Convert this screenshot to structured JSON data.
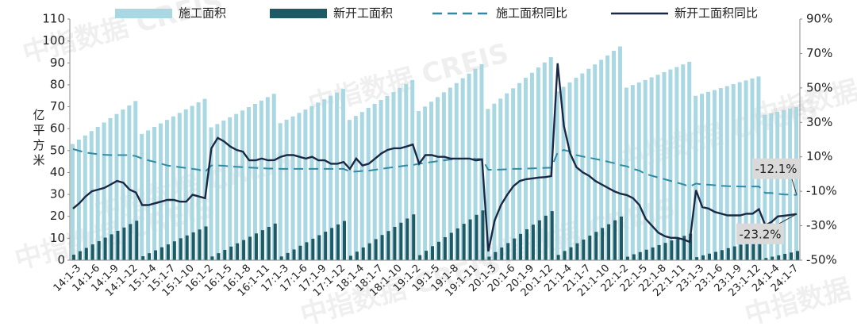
{
  "chart_data": {
    "type": "bar-line",
    "watermark": "中指数据 CREIS",
    "ylabel": "亿平方米",
    "categories": [
      null,
      "14:1-3",
      null,
      null,
      "14:1-6",
      null,
      null,
      "14:1-9",
      null,
      null,
      "14:1-12",
      null,
      null,
      "15:1-4",
      null,
      null,
      "15:1-7",
      null,
      null,
      "15:1-10",
      null,
      null,
      "16:1-2",
      null,
      null,
      "16:1-5",
      null,
      null,
      "16:1-8",
      null,
      null,
      "16:1-11",
      null,
      null,
      "17:1-3",
      null,
      null,
      "17:1-6",
      null,
      null,
      "17:1-9",
      null,
      null,
      "17:1-12",
      null,
      null,
      "18:1-4",
      null,
      null,
      "18:1-7",
      null,
      null,
      "18:1-10",
      null,
      null,
      "19:1-2",
      null,
      null,
      "19:1-5",
      null,
      null,
      "19:1-8",
      null,
      null,
      "19:1-11",
      null,
      null,
      "20:1-3",
      null,
      null,
      "20:1-6",
      null,
      null,
      "20:1-9",
      null,
      null,
      "20:1-12",
      null,
      null,
      "21:1-4",
      null,
      null,
      "21:1-7",
      null,
      null,
      "21:1-10",
      null,
      null,
      "22:1-2",
      null,
      null,
      "22:1-5",
      null,
      null,
      "22:1-8",
      null,
      null,
      "22:1-11",
      null,
      null,
      "23:1-3",
      null,
      null,
      "23:1-6",
      null,
      null,
      "23:1-9",
      null,
      null,
      "23:1-12",
      null,
      null,
      "24:1-4",
      null,
      null,
      "24:1-7"
    ],
    "series": [
      {
        "name": "施工面积",
        "kind": "bar",
        "color": "#a9d8e3",
        "values": [
          53.0,
          55.0,
          56.9,
          58.9,
          60.8,
          62.8,
          64.8,
          66.7,
          68.7,
          70.6,
          72.6,
          57.6,
          59.2,
          60.8,
          62.4,
          64.0,
          65.6,
          67.2,
          68.8,
          70.4,
          72.0,
          73.6,
          60.6,
          62.1,
          63.7,
          65.2,
          66.7,
          68.3,
          69.8,
          71.3,
          72.8,
          74.4,
          75.9,
          62.5,
          64.1,
          65.6,
          67.2,
          68.7,
          70.3,
          71.9,
          73.4,
          75.0,
          76.5,
          78.1,
          64.0,
          65.8,
          67.6,
          69.5,
          71.3,
          73.1,
          74.9,
          76.7,
          78.6,
          80.4,
          82.2,
          68.0,
          70.1,
          72.3,
          74.4,
          76.6,
          78.7,
          80.8,
          83.0,
          85.1,
          87.3,
          89.4,
          69.0,
          71.4,
          73.7,
          76.1,
          78.4,
          80.8,
          83.2,
          85.5,
          87.9,
          90.2,
          92.6,
          77.0,
          79.1,
          81.1,
          83.2,
          85.2,
          87.3,
          89.3,
          91.4,
          93.4,
          95.5,
          97.5,
          78.7,
          79.9,
          81.1,
          82.2,
          83.4,
          84.6,
          85.8,
          87.0,
          88.1,
          89.3,
          90.5,
          75.0,
          75.9,
          76.8,
          77.6,
          78.5,
          79.4,
          80.3,
          81.2,
          82.0,
          82.9,
          83.8,
          66.3,
          67.0,
          67.7,
          68.5,
          69.2,
          69.9
        ]
      },
      {
        "name": "新开工面积",
        "kind": "bar",
        "color": "#1e5a66",
        "values": [
          2.5,
          4.1,
          5.6,
          7.2,
          8.7,
          10.3,
          11.8,
          13.4,
          14.9,
          16.5,
          18.0,
          1.8,
          3.2,
          4.5,
          5.9,
          7.2,
          8.6,
          10.0,
          11.3,
          12.7,
          14.0,
          15.4,
          1.7,
          3.2,
          4.7,
          6.2,
          7.7,
          9.2,
          10.7,
          12.2,
          13.7,
          15.2,
          16.7,
          1.7,
          3.3,
          4.9,
          6.6,
          8.2,
          9.8,
          11.4,
          13.0,
          14.7,
          16.3,
          17.9,
          2.0,
          3.9,
          5.8,
          7.7,
          9.6,
          11.5,
          13.3,
          15.2,
          17.1,
          19.0,
          20.9,
          2.3,
          4.3,
          6.4,
          8.4,
          10.5,
          12.5,
          14.5,
          16.6,
          18.6,
          20.7,
          22.7,
          1.6,
          3.7,
          5.8,
          7.8,
          9.9,
          12.0,
          14.1,
          16.2,
          18.2,
          20.3,
          22.4,
          2.4,
          4.2,
          5.9,
          7.7,
          9.4,
          11.2,
          12.9,
          14.7,
          16.4,
          18.2,
          19.9,
          1.6,
          2.7,
          3.7,
          4.8,
          5.8,
          6.9,
          7.9,
          9.0,
          10.0,
          11.1,
          12.1,
          1.4,
          2.2,
          3.0,
          3.8,
          4.6,
          5.5,
          6.3,
          7.1,
          7.9,
          8.7,
          9.5,
          1.0,
          1.6,
          2.2,
          2.9,
          3.5,
          4.2
        ]
      },
      {
        "name": "施工面积同比",
        "kind": "line",
        "dash": true,
        "axis": "y2",
        "color": "#2f8ba5",
        "values": [
          14.5,
          13.5,
          12.5,
          12,
          11.5,
          11.2,
          11.0,
          11.0,
          11.0,
          11.0,
          10.4,
          9,
          8,
          7,
          6,
          5,
          4.5,
          4,
          3.5,
          3,
          2.5,
          1.3,
          5,
          5,
          4.8,
          4.5,
          4.2,
          4,
          3.8,
          3.6,
          3.4,
          3.2,
          3.2,
          3,
          3,
          3,
          3,
          3,
          3,
          3,
          3,
          3,
          3,
          3,
          1.5,
          1.5,
          1.8,
          2,
          2.5,
          3,
          3.5,
          4,
          4.5,
          5,
          5.2,
          6,
          6.5,
          7,
          7.5,
          8,
          8.5,
          8.8,
          9,
          9,
          8.8,
          8.7,
          2.5,
          2.5,
          2.6,
          2.8,
          3,
          3,
          3.2,
          3.3,
          3.4,
          3.6,
          3.7,
          12.5,
          14,
          13,
          11,
          10.2,
          9.5,
          8.8,
          8,
          7.2,
          6.3,
          5.2,
          4.5,
          3,
          2,
          0,
          -1,
          -2,
          -3,
          -4,
          -5,
          -6,
          -7.2,
          -5.5,
          -6,
          -6.2,
          -6.5,
          -6.8,
          -7,
          -7.1,
          -7.2,
          -7.3,
          -7.2,
          -7.2,
          -11,
          -11,
          -11.5,
          -11.8,
          -12,
          -12.1
        ],
        "value_labels": [
          null,
          null,
          null,
          null,
          null,
          null,
          null,
          null,
          null,
          null,
          null,
          null,
          null,
          null,
          null,
          null,
          null,
          null,
          null,
          null,
          null,
          null,
          null,
          null,
          null,
          null,
          null,
          null,
          null,
          null,
          null,
          null,
          null,
          null,
          null,
          null,
          null,
          null,
          null,
          null,
          null,
          null,
          null,
          null,
          null,
          null,
          null,
          null,
          null,
          null,
          null,
          null,
          null,
          null,
          null,
          null,
          null,
          null,
          null,
          null,
          null,
          null,
          null,
          null,
          null,
          null,
          null,
          null,
          null,
          null,
          null,
          null,
          null,
          null,
          null,
          null,
          null,
          null,
          null,
          null,
          null,
          null,
          null,
          null,
          null,
          null,
          null,
          null,
          null,
          null,
          null,
          null,
          null,
          null,
          null,
          null,
          null,
          null,
          null,
          null,
          null,
          null,
          null,
          null,
          null,
          null,
          null,
          null,
          null,
          null,
          null,
          null,
          null,
          null,
          null,
          "-12.1%"
        ]
      },
      {
        "name": "新开工面积同比",
        "kind": "line",
        "axis": "y2",
        "color": "#1b2845",
        "values": [
          -20,
          -17,
          -13,
          -10,
          -9,
          -8,
          -6,
          -4,
          -5,
          -9,
          -10.7,
          -18,
          -18,
          -17,
          -16,
          -15,
          -15,
          -16,
          -16,
          -12,
          -13,
          -14,
          15,
          21,
          19,
          16,
          14,
          13,
          8,
          8,
          9,
          8,
          8.1,
          10,
          11,
          11,
          10,
          9,
          10,
          8,
          8,
          6,
          6,
          7.0,
          3,
          9,
          5,
          6,
          9,
          12,
          14,
          15,
          15,
          16,
          17.2,
          6,
          11,
          11,
          10,
          10,
          9,
          9,
          9,
          9,
          8,
          8.5,
          -44.9,
          -27,
          -18,
          -12,
          -7,
          -4,
          -3,
          -2.5,
          -2,
          -1.8,
          -1.2,
          64.3,
          28,
          12,
          4,
          1,
          -1,
          -4,
          -6,
          -8,
          -10,
          -11.4,
          -12.2,
          -14,
          -18,
          -26,
          -30,
          -34,
          -36,
          -37,
          -37,
          -38,
          -39.4,
          -9.4,
          -19.2,
          -20,
          -22,
          -23,
          -24,
          -24,
          -24,
          -23,
          -23,
          -20.4,
          -29.7,
          -27.8,
          -24.6,
          -24.2,
          -23.7,
          -23.2
        ],
        "value_labels": [
          null,
          null,
          null,
          null,
          null,
          null,
          null,
          null,
          null,
          null,
          null,
          null,
          null,
          null,
          null,
          null,
          null,
          null,
          null,
          null,
          null,
          null,
          null,
          null,
          null,
          null,
          null,
          null,
          null,
          null,
          null,
          null,
          null,
          null,
          null,
          null,
          null,
          null,
          null,
          null,
          null,
          null,
          null,
          null,
          null,
          null,
          null,
          null,
          null,
          null,
          null,
          null,
          null,
          null,
          null,
          null,
          null,
          null,
          null,
          null,
          null,
          null,
          null,
          null,
          null,
          null,
          null,
          null,
          null,
          null,
          null,
          null,
          null,
          null,
          null,
          null,
          null,
          null,
          null,
          null,
          null,
          null,
          null,
          null,
          null,
          null,
          null,
          null,
          null,
          null,
          null,
          null,
          null,
          null,
          null,
          null,
          null,
          null,
          null,
          null,
          null,
          null,
          null,
          null,
          null,
          null,
          null,
          null,
          null,
          null,
          null,
          null,
          null,
          null,
          null,
          "-23.2%"
        ]
      }
    ],
    "ylim": [
      0,
      110
    ],
    "yticks": [
      0,
      10,
      20,
      30,
      40,
      50,
      60,
      70,
      80,
      90,
      100,
      110
    ],
    "y2lim": [
      -50,
      90
    ],
    "y2ticks": [
      {
        "value": -50,
        "label": "-50%"
      },
      {
        "value": -30,
        "label": "-30%"
      },
      {
        "value": -10,
        "label": "-10%"
      },
      {
        "value": 10,
        "label": "10%"
      },
      {
        "value": 30,
        "label": "30%"
      },
      {
        "value": 50,
        "label": "50%"
      },
      {
        "value": 70,
        "label": "70%"
      },
      {
        "value": 90,
        "label": "90%"
      }
    ]
  }
}
